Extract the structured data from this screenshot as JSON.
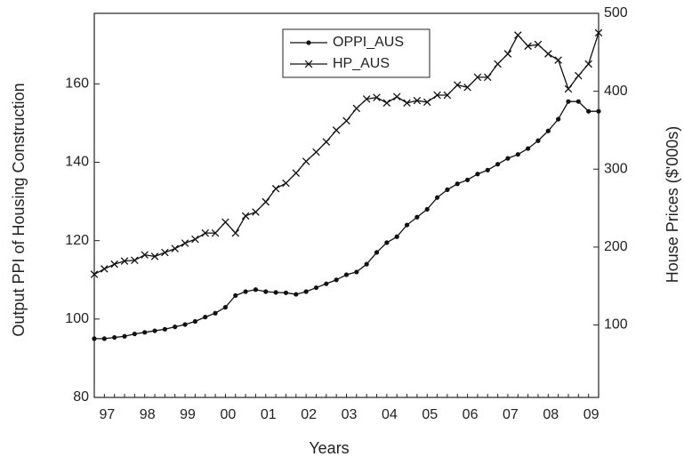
{
  "chart_data": {
    "type": "line",
    "x_label": "Years",
    "y_label": "Output PPI of Housing Construction",
    "y2_label": "House Prices ($'000s)",
    "categories": [
      null,
      "97",
      null,
      null,
      null,
      "98",
      null,
      null,
      null,
      "99",
      null,
      null,
      null,
      "00",
      null,
      null,
      null,
      "01",
      null,
      null,
      null,
      "02",
      null,
      null,
      null,
      "03",
      null,
      null,
      null,
      "04",
      null,
      null,
      null,
      "05",
      null,
      null,
      null,
      "06",
      null,
      null,
      null,
      "07",
      null,
      null,
      null,
      "08",
      null,
      null,
      null,
      "09",
      null
    ],
    "ylim": [
      80,
      178
    ],
    "yticks": [
      80,
      100,
      120,
      140,
      160
    ],
    "y2lim": [
      7,
      500
    ],
    "y2ticks": [
      100,
      200,
      300,
      400,
      500
    ],
    "legend": "top",
    "series": [
      {
        "name": "OPPI_AUS",
        "color": "#111111",
        "marker": "dot",
        "values": [
          95,
          95,
          95.3,
          95.6,
          96.2,
          96.6,
          97,
          97.4,
          98,
          98.6,
          99.4,
          100.5,
          101.5,
          103,
          106,
          107,
          107.5,
          107,
          106.8,
          106.7,
          106.3,
          107,
          108,
          109,
          110,
          111.3,
          112,
          114,
          117,
          119.5,
          121,
          124,
          126,
          128,
          131,
          133,
          134.5,
          135.5,
          137,
          138,
          139.5,
          141,
          142,
          143.5,
          145.5,
          148,
          151,
          155.5,
          155.5,
          153,
          153
        ]
      },
      {
        "name": "HP_AUS",
        "color": "#111111",
        "marker": "x",
        "axis": "y2",
        "values": [
          165,
          172,
          178,
          182,
          183,
          190,
          188,
          193,
          198,
          205,
          210,
          218,
          218,
          232,
          218,
          240,
          245,
          258,
          275,
          282,
          295,
          310,
          322,
          335,
          350,
          362,
          378,
          390,
          392,
          385,
          393,
          385,
          388,
          386,
          395,
          395,
          408,
          405,
          418,
          418,
          435,
          448,
          472,
          458,
          460,
          448,
          440,
          403,
          420,
          435,
          475
        ]
      }
    ]
  }
}
